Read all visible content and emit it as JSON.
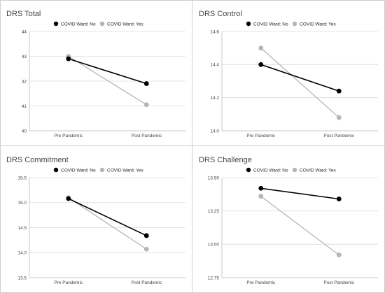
{
  "colors": {
    "no": "#000000",
    "yes": "#b5b5b5",
    "grid": "#dcdcdc",
    "axis": "#bdbdbd",
    "divider": "#cfcfcf"
  },
  "chart_data": [
    {
      "type": "line",
      "title": "DRS Total",
      "categories": [
        "Pre Pandemic",
        "Post Pandemic"
      ],
      "series": [
        {
          "name": "COVID Ward: No",
          "values": [
            42.9,
            41.9
          ]
        },
        {
          "name": "COVID Ward: Yes",
          "values": [
            43.0,
            41.05
          ]
        }
      ],
      "yticks": [
        "40",
        "41",
        "42",
        "43",
        "44"
      ],
      "ylim": [
        40,
        44
      ],
      "legend": "top-center",
      "grid": true
    },
    {
      "type": "line",
      "title": "DRS Control",
      "categories": [
        "Pre Pandemic",
        "Post Pandemic"
      ],
      "series": [
        {
          "name": "COVID Ward: No",
          "values": [
            14.4,
            14.24
          ]
        },
        {
          "name": "COVID Ward: Yes",
          "values": [
            14.5,
            14.08
          ]
        }
      ],
      "yticks": [
        "14.0",
        "14.2",
        "14.4",
        "14.6"
      ],
      "ylim": [
        14.0,
        14.6
      ],
      "legend": "top-center",
      "grid": true
    },
    {
      "type": "line",
      "title": "DRS Commitment",
      "categories": [
        "Pre Pandemic",
        "Post Pandemic"
      ],
      "series": [
        {
          "name": "COVID Ward: No",
          "values": [
            15.08,
            14.34
          ]
        },
        {
          "name": "COVID Ward: Yes",
          "values": [
            15.1,
            14.07
          ]
        }
      ],
      "yticks": [
        "13.5",
        "14.0",
        "14.5",
        "15.0",
        "15.5"
      ],
      "ylim": [
        13.5,
        15.5
      ],
      "legend": "top-center",
      "grid": true
    },
    {
      "type": "line",
      "title": "DRS Challenge",
      "categories": [
        "Pre Pandemic",
        "Post Pandemic"
      ],
      "series": [
        {
          "name": "COVID Ward: No",
          "values": [
            13.42,
            13.34
          ]
        },
        {
          "name": "COVID Ward: Yes",
          "values": [
            13.36,
            12.92
          ]
        }
      ],
      "yticks": [
        "12.75",
        "13.00",
        "13.25",
        "13.50"
      ],
      "ylim": [
        12.75,
        13.5
      ],
      "legend": "top-center",
      "grid": true
    }
  ]
}
